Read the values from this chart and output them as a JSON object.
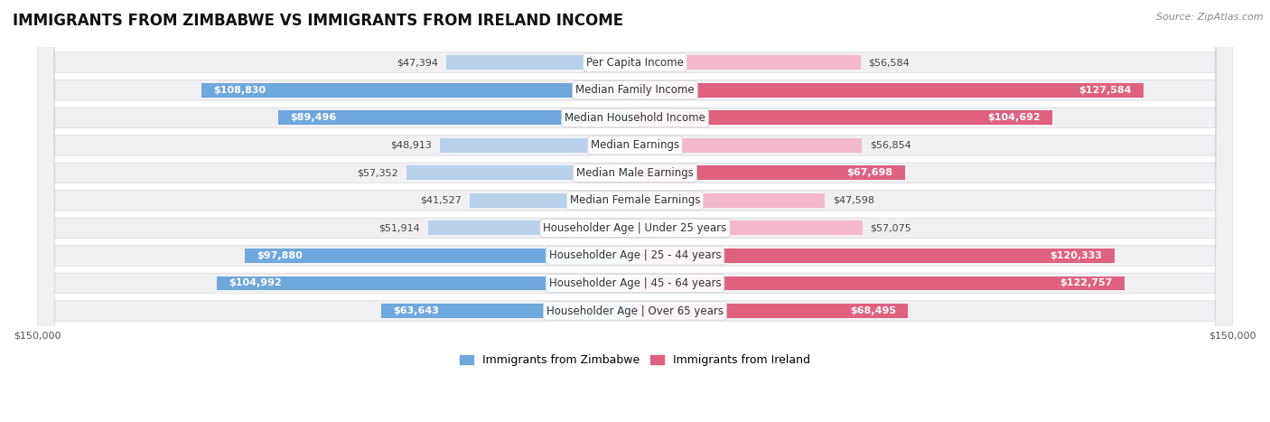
{
  "title": "IMMIGRANTS FROM ZIMBABWE VS IMMIGRANTS FROM IRELAND INCOME",
  "source": "Source: ZipAtlas.com",
  "categories": [
    "Per Capita Income",
    "Median Family Income",
    "Median Household Income",
    "Median Earnings",
    "Median Male Earnings",
    "Median Female Earnings",
    "Householder Age | Under 25 years",
    "Householder Age | 25 - 44 years",
    "Householder Age | 45 - 64 years",
    "Householder Age | Over 65 years"
  ],
  "zimbabwe_values": [
    47394,
    108830,
    89496,
    48913,
    57352,
    41527,
    51914,
    97880,
    104992,
    63643
  ],
  "ireland_values": [
    56584,
    127584,
    104692,
    56854,
    67698,
    47598,
    57075,
    120333,
    122757,
    68495
  ],
  "zimbabwe_color_light": "#b8d0e8",
  "zimbabwe_color_dark": "#6fa8dc",
  "ireland_color_light": "#f4b8cc",
  "ireland_color_dark": "#e06080",
  "zimbabwe_label": "Immigrants from Zimbabwe",
  "ireland_label": "Immigrants from Ireland",
  "axis_limit": 150000,
  "row_bg_color": "#f0f0f3",
  "row_border_color": "#d8d8e0",
  "title_fontsize": 12,
  "label_fontsize": 8.5,
  "value_fontsize": 8,
  "legend_fontsize": 9,
  "source_fontsize": 8,
  "inside_threshold": 0.42
}
